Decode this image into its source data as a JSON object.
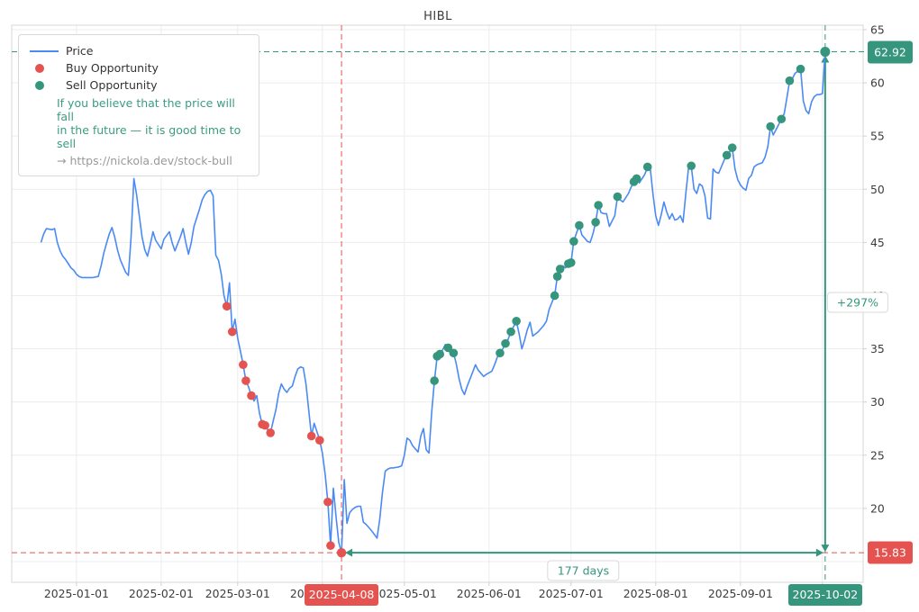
{
  "title": "HIBL",
  "legend": {
    "price_label": "Price",
    "buy_label": "Buy Opportunity",
    "sell_label": "Sell Opportunity",
    "note_line1": "If you believe that the price will fall",
    "note_line2": "in the future — it is good time to sell",
    "link": "→ https://nickola.dev/stock-bull"
  },
  "colors": {
    "price": "#4a8af4",
    "buy": "#e4534f",
    "sell": "#35967d",
    "grid": "#ececec",
    "border": "#d7d7d7",
    "tick": "#cfcfcf",
    "text": "#3c3c3c"
  },
  "chart_data": {
    "type": "line",
    "title": "HIBL",
    "x_unit": "days since 2025-01-01 (negative = Dec 2024)",
    "xlim_days": [
      -23.7,
      287.9
    ],
    "ylim": [
      13.05,
      65.42
    ],
    "grid": true,
    "legend_position": "upper-left",
    "y_ticks": [
      65,
      60,
      55,
      50,
      45,
      40,
      35,
      30,
      25,
      20
    ],
    "y_grid": [
      65,
      60,
      55,
      50,
      45,
      40,
      35,
      30,
      25,
      20,
      15
    ],
    "x_ticks": [
      {
        "d": 0,
        "label": "2025-01-01"
      },
      {
        "d": 31,
        "label": "2025-02-01"
      },
      {
        "d": 59,
        "label": "2025-03-01"
      },
      {
        "d": 90,
        "label": "2025-04-01"
      },
      {
        "d": 120,
        "label": "2025-05-01"
      },
      {
        "d": 151,
        "label": "2025-06-01"
      },
      {
        "d": 181,
        "label": "2025-07-01"
      },
      {
        "d": 212,
        "label": "2025-08-01"
      },
      {
        "d": 243,
        "label": "2025-09-01"
      },
      {
        "d": 273,
        "label": "2025-10-01"
      }
    ],
    "series": [
      {
        "name": "Price",
        "points": [
          [
            -13,
            45
          ],
          [
            -12,
            45.8
          ],
          [
            -11,
            46.3
          ],
          [
            -9,
            46.2
          ],
          [
            -8,
            46.3
          ],
          [
            -7,
            45
          ],
          [
            -6,
            44.2
          ],
          [
            -5,
            43.7
          ],
          [
            -4,
            43.4
          ],
          [
            -3,
            43
          ],
          [
            -2,
            42.6
          ],
          [
            -1,
            42.4
          ],
          [
            0,
            42
          ],
          [
            1,
            41.8
          ],
          [
            2,
            41.7
          ],
          [
            4,
            41.7
          ],
          [
            6,
            41.7
          ],
          [
            8,
            41.8
          ],
          [
            9,
            42.8
          ],
          [
            10,
            44
          ],
          [
            11,
            44.9
          ],
          [
            12,
            45.8
          ],
          [
            13,
            46.4
          ],
          [
            14,
            45.5
          ],
          [
            15,
            44.3
          ],
          [
            16,
            43.4
          ],
          [
            17,
            42.8
          ],
          [
            18,
            42.2
          ],
          [
            19,
            41.9
          ],
          [
            20,
            45.5
          ],
          [
            21,
            51
          ],
          [
            22,
            49.5
          ],
          [
            23,
            47.5
          ],
          [
            24,
            45.5
          ],
          [
            25,
            44.3
          ],
          [
            26,
            43.7
          ],
          [
            27,
            44.8
          ],
          [
            28,
            46
          ],
          [
            29,
            45.2
          ],
          [
            31,
            44.4
          ],
          [
            32,
            45.3
          ],
          [
            34,
            46
          ],
          [
            35,
            45
          ],
          [
            36,
            44.2
          ],
          [
            38,
            45.5
          ],
          [
            39,
            46.3
          ],
          [
            40,
            45
          ],
          [
            41,
            43.9
          ],
          [
            42,
            45
          ],
          [
            43,
            46.5
          ],
          [
            44,
            47.3
          ],
          [
            45,
            48.1
          ],
          [
            46,
            49
          ],
          [
            47,
            49.5
          ],
          [
            48,
            49.8
          ],
          [
            49,
            49.9
          ],
          [
            50,
            49.4
          ],
          [
            51,
            43.8
          ],
          [
            52,
            43.3
          ],
          [
            53,
            42
          ],
          [
            54,
            40
          ],
          [
            55,
            39
          ],
          [
            56,
            41.2
          ],
          [
            57,
            36.6
          ],
          [
            58,
            37.8
          ],
          [
            59,
            36
          ],
          [
            60,
            34.8
          ],
          [
            61,
            33.5
          ],
          [
            62,
            32
          ],
          [
            63,
            31.4
          ],
          [
            64,
            30.6
          ],
          [
            65,
            30.1
          ],
          [
            66,
            30.6
          ],
          [
            67,
            28.9
          ],
          [
            68,
            27.9
          ],
          [
            69,
            27.8
          ],
          [
            70,
            27.4
          ],
          [
            71,
            27.1
          ],
          [
            72,
            28.2
          ],
          [
            73,
            29.3
          ],
          [
            74,
            30.8
          ],
          [
            75,
            31.7
          ],
          [
            76,
            31.2
          ],
          [
            77,
            30.9
          ],
          [
            78,
            31.3
          ],
          [
            79,
            31.5
          ],
          [
            80,
            32.4
          ],
          [
            81,
            33.1
          ],
          [
            82,
            33.3
          ],
          [
            83,
            33.2
          ],
          [
            84,
            31.7
          ],
          [
            85,
            29.2
          ],
          [
            86,
            26.8
          ],
          [
            87,
            28
          ],
          [
            88,
            27.2
          ],
          [
            89,
            26.4
          ],
          [
            90,
            25.2
          ],
          [
            91,
            23.2
          ],
          [
            92,
            20.6
          ],
          [
            93,
            16.5
          ],
          [
            94,
            21.9
          ],
          [
            95,
            19.2
          ],
          [
            96,
            16.8
          ],
          [
            97,
            15.83
          ],
          [
            98,
            22.7
          ],
          [
            99,
            18.6
          ],
          [
            100,
            19.6
          ],
          [
            101,
            19.9
          ],
          [
            102,
            20.1
          ],
          [
            103,
            20.2
          ],
          [
            104,
            20.2
          ],
          [
            105,
            18.7
          ],
          [
            106,
            18.5
          ],
          [
            107,
            18.2
          ],
          [
            108,
            17.9
          ],
          [
            110,
            17.2
          ],
          [
            111,
            19
          ],
          [
            112,
            21.5
          ],
          [
            113,
            23.5
          ],
          [
            114,
            23.7
          ],
          [
            115,
            23.8
          ],
          [
            116,
            23.8
          ],
          [
            118,
            23.9
          ],
          [
            119,
            24
          ],
          [
            120,
            25
          ],
          [
            121,
            26.6
          ],
          [
            122,
            26.4
          ],
          [
            123,
            25.9
          ],
          [
            124,
            25.6
          ],
          [
            125,
            25.3
          ],
          [
            126,
            26.8
          ],
          [
            127,
            27.5
          ],
          [
            128,
            25.5
          ],
          [
            129,
            25.2
          ],
          [
            130,
            29
          ],
          [
            131,
            32
          ],
          [
            132,
            34.3
          ],
          [
            133,
            34.5
          ],
          [
            134,
            34.9
          ],
          [
            135,
            35.4
          ],
          [
            136,
            35.1
          ],
          [
            137,
            34.4
          ],
          [
            138,
            34.6
          ],
          [
            139,
            33.6
          ],
          [
            140,
            32.2
          ],
          [
            141,
            31.2
          ],
          [
            142,
            30.7
          ],
          [
            143,
            31.5
          ],
          [
            145,
            32.8
          ],
          [
            146,
            33.5
          ],
          [
            147,
            33
          ],
          [
            148,
            32.7
          ],
          [
            149,
            32.4
          ],
          [
            150,
            32.6
          ],
          [
            152,
            32.9
          ],
          [
            153,
            33.5
          ],
          [
            154,
            34.2
          ],
          [
            155,
            34.6
          ],
          [
            156,
            35
          ],
          [
            157,
            35.5
          ],
          [
            158,
            35.9
          ],
          [
            159,
            36.6
          ],
          [
            160,
            37.1
          ],
          [
            161,
            37.6
          ],
          [
            162,
            36.4
          ],
          [
            163,
            35
          ],
          [
            164,
            35.8
          ],
          [
            165,
            36.8
          ],
          [
            166,
            37.5
          ],
          [
            167,
            36.2
          ],
          [
            168,
            36.4
          ],
          [
            169,
            36.6
          ],
          [
            170,
            36.9
          ],
          [
            171,
            37.2
          ],
          [
            172,
            37.6
          ],
          [
            173,
            38.7
          ],
          [
            175,
            40
          ],
          [
            176,
            41.8
          ],
          [
            177,
            42.5
          ],
          [
            178,
            42.8
          ],
          [
            179,
            42.6
          ],
          [
            180,
            43
          ],
          [
            181,
            43.1
          ],
          [
            182,
            45.1
          ],
          [
            183,
            45.9
          ],
          [
            184,
            46.6
          ],
          [
            185,
            45.7
          ],
          [
            187,
            45.1
          ],
          [
            188,
            45
          ],
          [
            189,
            45.8
          ],
          [
            190,
            46.9
          ],
          [
            191,
            48.5
          ],
          [
            192,
            47.8
          ],
          [
            193,
            47.7
          ],
          [
            194,
            47.7
          ],
          [
            195,
            46.5
          ],
          [
            197,
            47.5
          ],
          [
            198,
            49.3
          ],
          [
            199,
            49
          ],
          [
            200,
            48.8
          ],
          [
            202,
            49.6
          ],
          [
            203,
            50.2
          ],
          [
            204,
            50.7
          ],
          [
            205,
            51
          ],
          [
            206,
            50.6
          ],
          [
            208,
            51.4
          ],
          [
            209,
            52.1
          ],
          [
            210,
            51.9
          ],
          [
            211,
            49.5
          ],
          [
            212,
            47.5
          ],
          [
            213,
            46.6
          ],
          [
            214,
            47.6
          ],
          [
            215,
            48.8
          ],
          [
            216,
            47.9
          ],
          [
            217,
            47.2
          ],
          [
            218,
            47.7
          ],
          [
            219,
            47.1
          ],
          [
            220,
            47.2
          ],
          [
            221,
            47.5
          ],
          [
            222,
            46.9
          ],
          [
            223,
            49.6
          ],
          [
            224,
            52
          ],
          [
            225,
            52.2
          ],
          [
            226,
            50
          ],
          [
            227,
            49.6
          ],
          [
            228,
            50.5
          ],
          [
            229,
            50.3
          ],
          [
            230,
            49.4
          ],
          [
            231,
            47.3
          ],
          [
            232,
            47.2
          ],
          [
            233,
            51.9
          ],
          [
            234,
            51.6
          ],
          [
            235,
            51.5
          ],
          [
            236,
            52.1
          ],
          [
            237,
            52.7
          ],
          [
            238,
            53.2
          ],
          [
            239,
            53.5
          ],
          [
            240,
            53.9
          ],
          [
            241,
            51.9
          ],
          [
            242,
            50.9
          ],
          [
            243,
            50.4
          ],
          [
            244,
            50.1
          ],
          [
            245,
            49.9
          ],
          [
            246,
            51
          ],
          [
            247,
            51.3
          ],
          [
            248,
            52.1
          ],
          [
            249,
            52.3
          ],
          [
            250,
            52.4
          ],
          [
            251,
            52.5
          ],
          [
            252,
            53
          ],
          [
            253,
            54
          ],
          [
            254,
            55.9
          ],
          [
            255,
            55.1
          ],
          [
            256,
            55.6
          ],
          [
            257,
            56.1
          ],
          [
            258,
            56.6
          ],
          [
            259,
            57.1
          ],
          [
            260,
            58.6
          ],
          [
            261,
            60.2
          ],
          [
            262,
            60.4
          ],
          [
            263,
            60.9
          ],
          [
            264,
            61.1
          ],
          [
            265,
            61.3
          ],
          [
            266,
            58.3
          ],
          [
            267,
            57.4
          ],
          [
            268,
            57.1
          ],
          [
            269,
            58.2
          ],
          [
            270,
            58.7
          ],
          [
            271,
            58.9
          ],
          [
            272,
            58.9
          ],
          [
            273,
            59
          ],
          [
            274,
            62.92
          ]
        ]
      }
    ],
    "buy_points": [
      [
        55,
        39
      ],
      [
        57,
        36.6
      ],
      [
        61,
        33.5
      ],
      [
        62,
        32
      ],
      [
        64,
        30.6
      ],
      [
        68,
        27.9
      ],
      [
        69,
        27.8
      ],
      [
        71,
        27.1
      ],
      [
        86,
        26.8
      ],
      [
        89,
        26.4
      ],
      [
        92,
        20.6
      ],
      [
        93,
        16.5
      ],
      [
        97,
        15.83
      ]
    ],
    "sell_points": [
      [
        131,
        32
      ],
      [
        132,
        34.3
      ],
      [
        133,
        34.5
      ],
      [
        136,
        35.1
      ],
      [
        138,
        34.6
      ],
      [
        155,
        34.6
      ],
      [
        157,
        35.5
      ],
      [
        159,
        36.6
      ],
      [
        161,
        37.6
      ],
      [
        175,
        40
      ],
      [
        176,
        41.8
      ],
      [
        177,
        42.5
      ],
      [
        180,
        43
      ],
      [
        181,
        43.1
      ],
      [
        182,
        45.1
      ],
      [
        184,
        46.6
      ],
      [
        190,
        46.9
      ],
      [
        191,
        48.5
      ],
      [
        198,
        49.3
      ],
      [
        204,
        50.7
      ],
      [
        205,
        51
      ],
      [
        209,
        52.1
      ],
      [
        225,
        52.2
      ],
      [
        238,
        53.2
      ],
      [
        240,
        53.9
      ],
      [
        254,
        55.9
      ],
      [
        258,
        56.6
      ],
      [
        261,
        60.2
      ],
      [
        265,
        61.3
      ],
      [
        274,
        62.92
      ]
    ],
    "annotations": {
      "buy": {
        "day": 97,
        "price": 15.83,
        "date": "2025-04-08"
      },
      "sell": {
        "day": 274,
        "price": 62.92,
        "date": "2025-10-02"
      },
      "gain_label": "+297%",
      "duration_label": "177 days"
    }
  }
}
